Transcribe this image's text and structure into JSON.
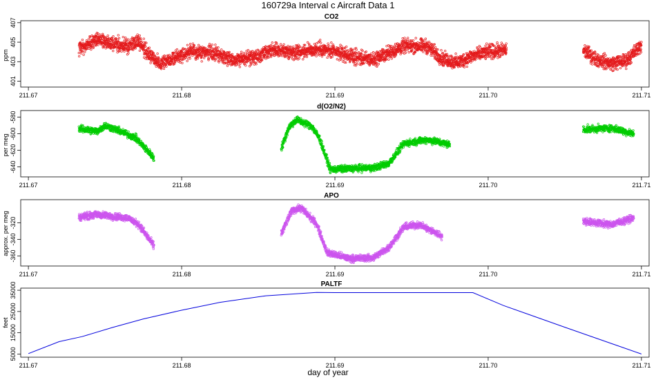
{
  "figure": {
    "title": "160729a   Interval c Aircraft Data 1",
    "xlabel": "day of year"
  },
  "chart_data": [
    {
      "type": "scatter",
      "title": "CO2",
      "ylabel": "ppm",
      "color": "#e41a1c",
      "xlim": [
        211.6695,
        211.7105
      ],
      "ylim": [
        400.4,
        407.2
      ],
      "xticks": [
        211.67,
        211.68,
        211.69,
        211.7,
        211.71
      ],
      "xtick_labels": [
        "211.67",
        "211.68",
        "211.69",
        "211.70",
        "211.71"
      ],
      "yticks": [
        401,
        403,
        405,
        407
      ],
      "ytick_labels": [
        "401",
        "403",
        "405",
        "407"
      ],
      "series": [
        {
          "name": "CO2",
          "segments": [
            {
              "x0": 211.6733,
              "x1": 211.7012,
              "noise": 0.6,
              "knots": [
                [
                  211.6733,
                  404.4
                ],
                [
                  211.6745,
                  405.3
                ],
                [
                  211.6755,
                  404.8
                ],
                [
                  211.6765,
                  404.6
                ],
                [
                  211.6772,
                  405.1
                ],
                [
                  211.6778,
                  403.8
                ],
                [
                  211.6785,
                  402.9
                ],
                [
                  211.6795,
                  403.4
                ],
                [
                  211.6805,
                  404.0
                ],
                [
                  211.682,
                  403.9
                ],
                [
                  211.6835,
                  403.2
                ],
                [
                  211.685,
                  403.5
                ],
                [
                  211.686,
                  404.2
                ],
                [
                  211.6875,
                  404.0
                ],
                [
                  211.689,
                  404.3
                ],
                [
                  211.6905,
                  403.8
                ],
                [
                  211.6915,
                  403.4
                ],
                [
                  211.6925,
                  403.2
                ],
                [
                  211.6935,
                  403.9
                ],
                [
                  211.6945,
                  404.6
                ],
                [
                  211.696,
                  404.6
                ],
                [
                  211.697,
                  403.3
                ],
                [
                  211.698,
                  402.9
                ],
                [
                  211.699,
                  403.6
                ],
                [
                  211.7,
                  404.0
                ],
                [
                  211.7012,
                  404.2
                ]
              ]
            },
            {
              "x0": 211.7062,
              "x1": 211.71,
              "noise": 0.6,
              "knots": [
                [
                  211.7062,
                  404.2
                ],
                [
                  211.707,
                  403.3
                ],
                [
                  211.708,
                  402.8
                ],
                [
                  211.709,
                  403.1
                ],
                [
                  211.71,
                  404.7
                ]
              ]
            }
          ]
        }
      ]
    },
    {
      "type": "scatter",
      "title": "d(O2/N2)",
      "ylabel": "per meg",
      "color": "#00cc00",
      "xlim": [
        211.6695,
        211.7105
      ],
      "ylim": [
        -652,
        -572
      ],
      "xticks": [
        211.67,
        211.68,
        211.69,
        211.7,
        211.71
      ],
      "xtick_labels": [
        "211.67",
        "211.68",
        "211.69",
        "211.70",
        "211.71"
      ],
      "yticks": [
        -640,
        -620,
        -600,
        -580
      ],
      "ytick_labels": [
        "-640",
        "-620",
        "-600",
        "-580"
      ],
      "series": [
        {
          "name": "d(O2/N2)",
          "segments": [
            {
              "x0": 211.6733,
              "x1": 211.6782,
              "noise": 3.5,
              "knots": [
                [
                  211.6733,
                  -594
                ],
                [
                  211.6745,
                  -597
                ],
                [
                  211.675,
                  -590
                ],
                [
                  211.676,
                  -597
                ],
                [
                  211.677,
                  -605
                ],
                [
                  211.678,
                  -625
                ],
                [
                  211.6782,
                  -630
                ]
              ]
            },
            {
              "x0": 211.6865,
              "x1": 211.6975,
              "noise": 3.5,
              "knots": [
                [
                  211.6865,
                  -618
                ],
                [
                  211.687,
                  -592
                ],
                [
                  211.6875,
                  -583
                ],
                [
                  211.6885,
                  -591
                ],
                [
                  211.689,
                  -606
                ],
                [
                  211.6897,
                  -643
                ],
                [
                  211.691,
                  -642
                ],
                [
                  211.6925,
                  -641
                ],
                [
                  211.6935,
                  -636
                ],
                [
                  211.6945,
                  -612
                ],
                [
                  211.696,
                  -607
                ],
                [
                  211.6975,
                  -613
                ]
              ]
            },
            {
              "x0": 211.7062,
              "x1": 211.7095,
              "noise": 3.5,
              "knots": [
                [
                  211.7062,
                  -595
                ],
                [
                  211.708,
                  -593
                ],
                [
                  211.7095,
                  -600
                ]
              ]
            }
          ]
        }
      ]
    },
    {
      "type": "scatter",
      "title": "APO",
      "ylabel": "approx. per meg",
      "color": "#cc55ee",
      "xlim": [
        211.6695,
        211.7105
      ],
      "ylim": [
        -372,
        -292
      ],
      "xticks": [
        211.67,
        211.68,
        211.69,
        211.7,
        211.71
      ],
      "xtick_labels": [
        "211.67",
        "211.68",
        "211.69",
        "211.70",
        "211.71"
      ],
      "yticks": [
        -360,
        -340,
        -320
      ],
      "ytick_labels": [
        "-360",
        "-340",
        "-320"
      ],
      "series": [
        {
          "name": "APO",
          "segments": [
            {
              "x0": 211.6733,
              "x1": 211.6782,
              "noise": 3.5,
              "knots": [
                [
                  211.6733,
                  -313
                ],
                [
                  211.6745,
                  -310
                ],
                [
                  211.6755,
                  -312
                ],
                [
                  211.6765,
                  -314
                ],
                [
                  211.6772,
                  -322
                ],
                [
                  211.6782,
                  -348
                ]
              ]
            },
            {
              "x0": 211.6865,
              "x1": 211.697,
              "noise": 3.5,
              "knots": [
                [
                  211.6865,
                  -333
                ],
                [
                  211.6872,
                  -305
                ],
                [
                  211.6878,
                  -302
                ],
                [
                  211.6888,
                  -321
                ],
                [
                  211.6895,
                  -356
                ],
                [
                  211.691,
                  -363
                ],
                [
                  211.6925,
                  -362
                ],
                [
                  211.6935,
                  -350
                ],
                [
                  211.6945,
                  -325
                ],
                [
                  211.6955,
                  -322
                ],
                [
                  211.697,
                  -336
                ]
              ]
            },
            {
              "x0": 211.7062,
              "x1": 211.7095,
              "noise": 3.5,
              "knots": [
                [
                  211.7062,
                  -318
                ],
                [
                  211.708,
                  -322
                ],
                [
                  211.7095,
                  -314
                ]
              ]
            }
          ]
        }
      ]
    },
    {
      "type": "line",
      "title": "PALTF",
      "ylabel": "feet",
      "color": "#0000dd",
      "xlim": [
        211.6695,
        211.7105
      ],
      "ylim": [
        3500,
        36000
      ],
      "xticks": [
        211.67,
        211.68,
        211.69,
        211.7,
        211.71
      ],
      "xtick_labels": [
        "211.67",
        "211.68",
        "211.69",
        "211.70",
        "211.71"
      ],
      "yticks": [
        5000,
        15000,
        25000,
        35000
      ],
      "ytick_labels": [
        "5000",
        "15000",
        "25000",
        "35000"
      ],
      "series": [
        {
          "name": "PALTF",
          "x": [
            211.67,
            211.672,
            211.6735,
            211.6755,
            211.6775,
            211.68,
            211.6825,
            211.6855,
            211.6888,
            211.69,
            211.699,
            211.701,
            211.705,
            211.71
          ],
          "y": [
            5200,
            10800,
            13200,
            17500,
            21500,
            25600,
            29300,
            32400,
            34000,
            33900,
            33900,
            27800,
            17600,
            5000
          ]
        }
      ]
    }
  ]
}
